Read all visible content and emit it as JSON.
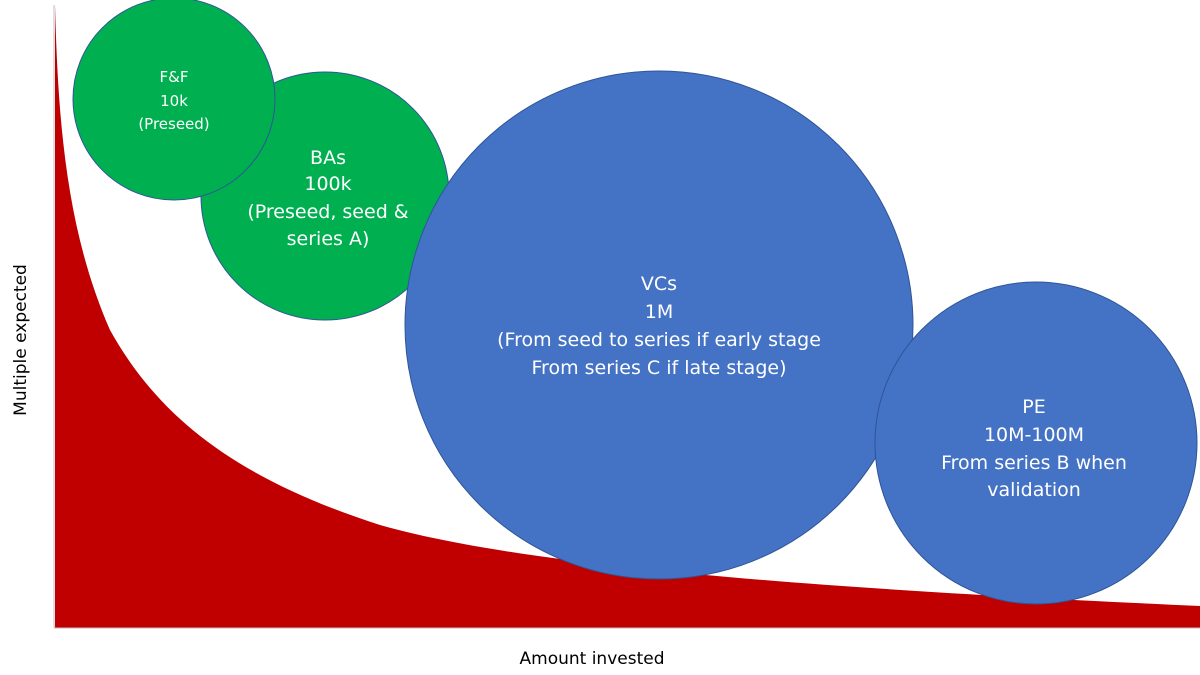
{
  "axes": {
    "x_label": "Amount invested",
    "y_label": "Multiple expected"
  },
  "colors": {
    "curve": "#c00000",
    "green_bubble": "#00b050",
    "blue_bubble": "#4472c4",
    "bubble_text": "#ffffff",
    "axis_line": "#bfbfbf"
  },
  "bubbles": {
    "ff": {
      "line1": "F&F",
      "line2": "10k",
      "line3": "(Preseed)"
    },
    "bas": {
      "line1": "BAs",
      "line2": "100k",
      "line3": "(Preseed, seed &",
      "line4": "series A)"
    },
    "vcs": {
      "line1": "VCs",
      "line2": "1M",
      "line3": "(From seed to series if early stage",
      "line4": "From series C  if late stage)"
    },
    "pe": {
      "line1": "PE",
      "line2": "10M-100M",
      "line3": "From series B when",
      "line4": "validation"
    }
  }
}
